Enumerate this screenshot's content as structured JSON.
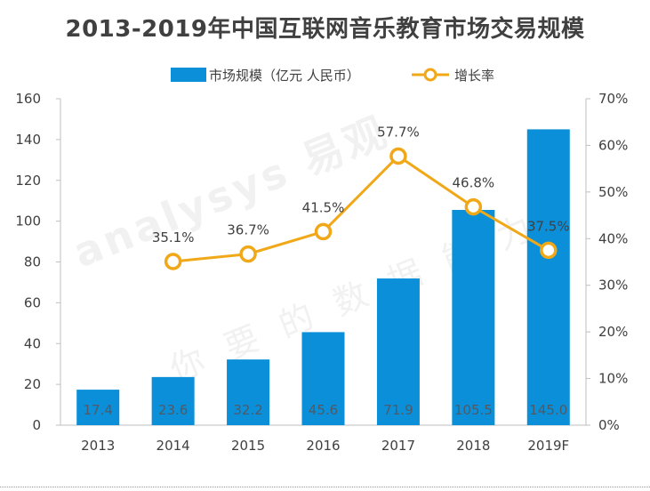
{
  "chart_data": {
    "type": "bar",
    "title": "2013-2019年中国互联网音乐教育市场交易规模",
    "categories": [
      "2013",
      "2014",
      "2015",
      "2016",
      "2017",
      "2018",
      "2019F"
    ],
    "series": [
      {
        "name": "市场规模（亿元 人民币）",
        "type": "bar",
        "axis": "left",
        "color": "#0a8fd8",
        "values": [
          17.4,
          23.6,
          32.2,
          45.6,
          71.9,
          105.5,
          145.0
        ],
        "labels": [
          "17.4",
          "23.6",
          "32.2",
          "45.6",
          "71.9",
          "105.5",
          "145.0"
        ]
      },
      {
        "name": "增长率",
        "type": "line",
        "axis": "right",
        "color": "#f0a818",
        "values": [
          null,
          35.1,
          36.7,
          41.5,
          57.7,
          46.8,
          37.5
        ],
        "labels": [
          "",
          "35.1%",
          "36.7%",
          "41.5%",
          "57.7%",
          "46.8%",
          "37.5%"
        ]
      }
    ],
    "ylim": [
      0,
      160
    ],
    "y_ticks": [
      "0",
      "20",
      "40",
      "60",
      "80",
      "100",
      "120",
      "140",
      "160"
    ],
    "y2lim": [
      0,
      70
    ],
    "y2_ticks": [
      "0%",
      "10%",
      "20%",
      "30%",
      "40%",
      "50%",
      "60%",
      "70%"
    ],
    "legend_position": "top-center",
    "grid": false
  },
  "watermark": {
    "brand": "analysys 易观",
    "slogan": "你要的数据能力"
  }
}
